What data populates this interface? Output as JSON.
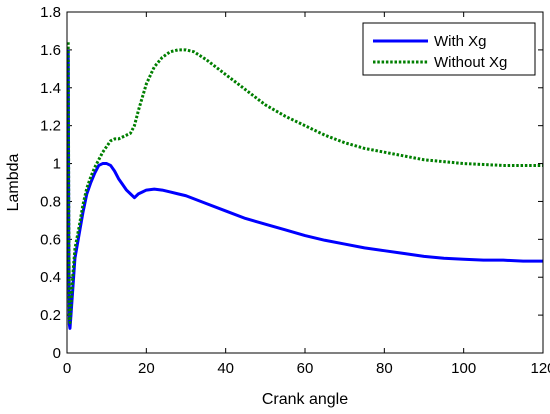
{
  "chart_data": {
    "type": "line",
    "title": "",
    "xlabel": "Crank angle",
    "ylabel": "Lambda",
    "xlim": [
      0,
      120
    ],
    "ylim": [
      0,
      1.8
    ],
    "xticks": [
      "0",
      "20",
      "40",
      "60",
      "80",
      "100",
      "120"
    ],
    "yticks": [
      "0",
      "0.2",
      "0.4",
      "0.6",
      "0.8",
      "1",
      "1.2",
      "1.4",
      "1.6",
      "1.8"
    ],
    "grid": false,
    "legend_position": "top-right",
    "series": [
      {
        "name": "With Xg",
        "color": "#0000ff",
        "style": "solid",
        "x": [
          0.3,
          0.45,
          0.6,
          0.75,
          1,
          1.5,
          2,
          3,
          4,
          5,
          6,
          7,
          8,
          9,
          10,
          11,
          12,
          13,
          14,
          15,
          16,
          17,
          18,
          19,
          20,
          22,
          24,
          26,
          28,
          30,
          35,
          40,
          45,
          50,
          55,
          60,
          65,
          70,
          75,
          80,
          85,
          90,
          95,
          100,
          105,
          110,
          115,
          120
        ],
        "y": [
          1.6,
          0.6,
          0.15,
          0.13,
          0.2,
          0.35,
          0.5,
          0.62,
          0.74,
          0.84,
          0.9,
          0.95,
          0.99,
          1.0,
          1.0,
          0.99,
          0.96,
          0.92,
          0.89,
          0.86,
          0.84,
          0.82,
          0.84,
          0.85,
          0.86,
          0.865,
          0.86,
          0.85,
          0.84,
          0.83,
          0.79,
          0.75,
          0.71,
          0.68,
          0.65,
          0.62,
          0.595,
          0.575,
          0.555,
          0.54,
          0.525,
          0.51,
          0.5,
          0.495,
          0.49,
          0.49,
          0.485,
          0.485
        ]
      },
      {
        "name": "Without Xg",
        "color": "#007f00",
        "style": "dotted",
        "x": [
          0.3,
          0.45,
          0.6,
          0.75,
          1,
          1.5,
          2,
          3,
          4,
          5,
          6,
          7,
          8,
          9,
          10,
          11,
          12,
          13,
          14,
          15,
          16,
          17,
          18,
          19,
          20,
          22,
          24,
          26,
          28,
          30,
          32,
          35,
          40,
          45,
          50,
          55,
          60,
          65,
          70,
          75,
          80,
          85,
          90,
          95,
          100,
          105,
          110,
          115,
          120
        ],
        "y": [
          1.64,
          0.7,
          0.18,
          0.16,
          0.25,
          0.42,
          0.55,
          0.66,
          0.78,
          0.87,
          0.93,
          0.98,
          1.02,
          1.06,
          1.09,
          1.12,
          1.13,
          1.13,
          1.14,
          1.15,
          1.16,
          1.2,
          1.28,
          1.35,
          1.42,
          1.51,
          1.56,
          1.59,
          1.6,
          1.6,
          1.59,
          1.55,
          1.47,
          1.39,
          1.31,
          1.25,
          1.2,
          1.15,
          1.11,
          1.08,
          1.06,
          1.04,
          1.02,
          1.01,
          1.0,
          0.995,
          0.99,
          0.99,
          0.99
        ]
      }
    ]
  }
}
